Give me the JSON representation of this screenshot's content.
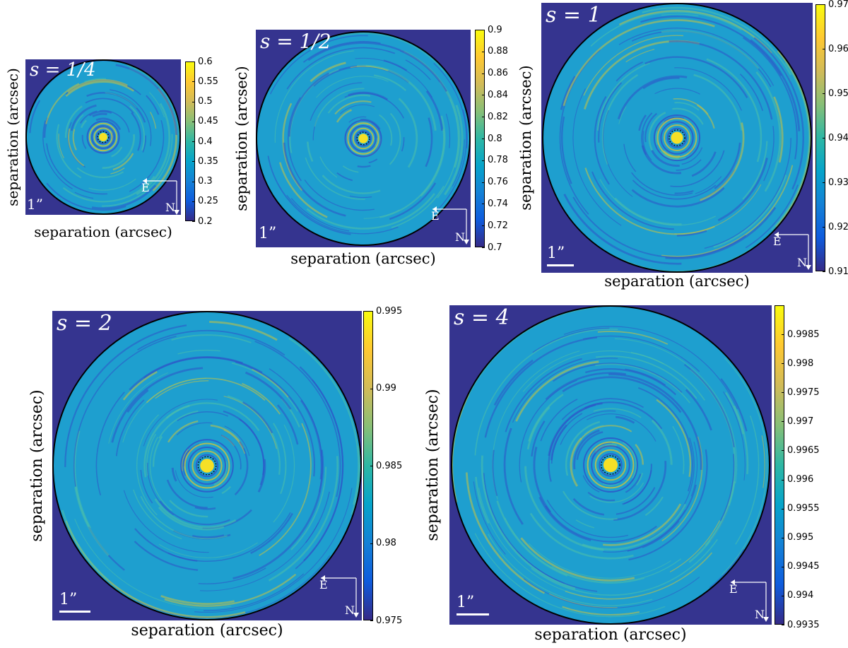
{
  "colors": {
    "background": "#35348f",
    "disk": "#1e9fcf",
    "ring_dark": "#2d52c8",
    "ring_light": "#4cc0a9",
    "ring_warm": "#c9c33f",
    "core": "#f5e026",
    "outline": "#000000",
    "colormap": [
      "#352a87",
      "#0f5cdd",
      "#1481d6",
      "#06a4ca",
      "#2eb7a4",
      "#87bf77",
      "#d1bb59",
      "#fec832",
      "#f9fb0e"
    ]
  },
  "icons": {
    "compass": "compass-arrows-icon",
    "scale": "scale-bar-icon"
  },
  "chart_data": [
    {
      "type": "heatmap",
      "title": "s = 1/4",
      "label_s": "s = 1/4",
      "xlabel": "separation (arcsec)",
      "ylabel": "separation (arcsec)",
      "colorbar": {
        "min": 0.2,
        "max": 0.6,
        "ticks": [
          "0.6",
          "0.55",
          "0.5",
          "0.45",
          "0.4",
          "0.35",
          "0.3",
          "0.25",
          "0.2"
        ]
      },
      "scale_text": "1”",
      "compass": {
        "east": "E",
        "north": "N"
      }
    },
    {
      "type": "heatmap",
      "title": "s = 1/2",
      "label_s": "s = 1/2",
      "xlabel": "separation (arcsec)",
      "ylabel": "separation (arcsec)",
      "colorbar": {
        "min": 0.7,
        "max": 0.9,
        "ticks": [
          "0.9",
          "0.88",
          "0.86",
          "0.84",
          "0.82",
          "0.8",
          "0.78",
          "0.76",
          "0.74",
          "0.72",
          "0.7"
        ]
      },
      "scale_text": "1”",
      "compass": {
        "east": "E",
        "north": "N"
      }
    },
    {
      "type": "heatmap",
      "title": "s = 1",
      "label_s": "s = 1",
      "xlabel": "separation (arcsec)",
      "ylabel": "separation (arcsec)",
      "colorbar": {
        "min": 0.91,
        "max": 0.97,
        "ticks": [
          "0.97",
          "0.96",
          "0.95",
          "0.94",
          "0.93",
          "0.92",
          "0.91"
        ]
      },
      "scale_text": "1”",
      "compass": {
        "east": "E",
        "north": "N"
      }
    },
    {
      "type": "heatmap",
      "title": "s = 2",
      "label_s": "s = 2",
      "xlabel": "separation (arcsec)",
      "ylabel": "separation (arcsec)",
      "colorbar": {
        "min": 0.975,
        "max": 0.995,
        "ticks": [
          "0.995",
          "0.99",
          "0.985",
          "0.98",
          "0.975"
        ]
      },
      "scale_text": "1”",
      "compass": {
        "east": "E",
        "north": "N"
      }
    },
    {
      "type": "heatmap",
      "title": "s = 4",
      "label_s": "s = 4",
      "xlabel": "separation (arcsec)",
      "ylabel": "separation (arcsec)",
      "colorbar": {
        "min": 0.9935,
        "max": 0.999,
        "ticks": [
          "0.9985",
          "0.998",
          "0.9975",
          "0.997",
          "0.9965",
          "0.996",
          "0.9955",
          "0.995",
          "0.9945",
          "0.994",
          "0.9935"
        ]
      },
      "scale_text": "1”",
      "compass": {
        "east": "E",
        "north": "N"
      }
    }
  ]
}
